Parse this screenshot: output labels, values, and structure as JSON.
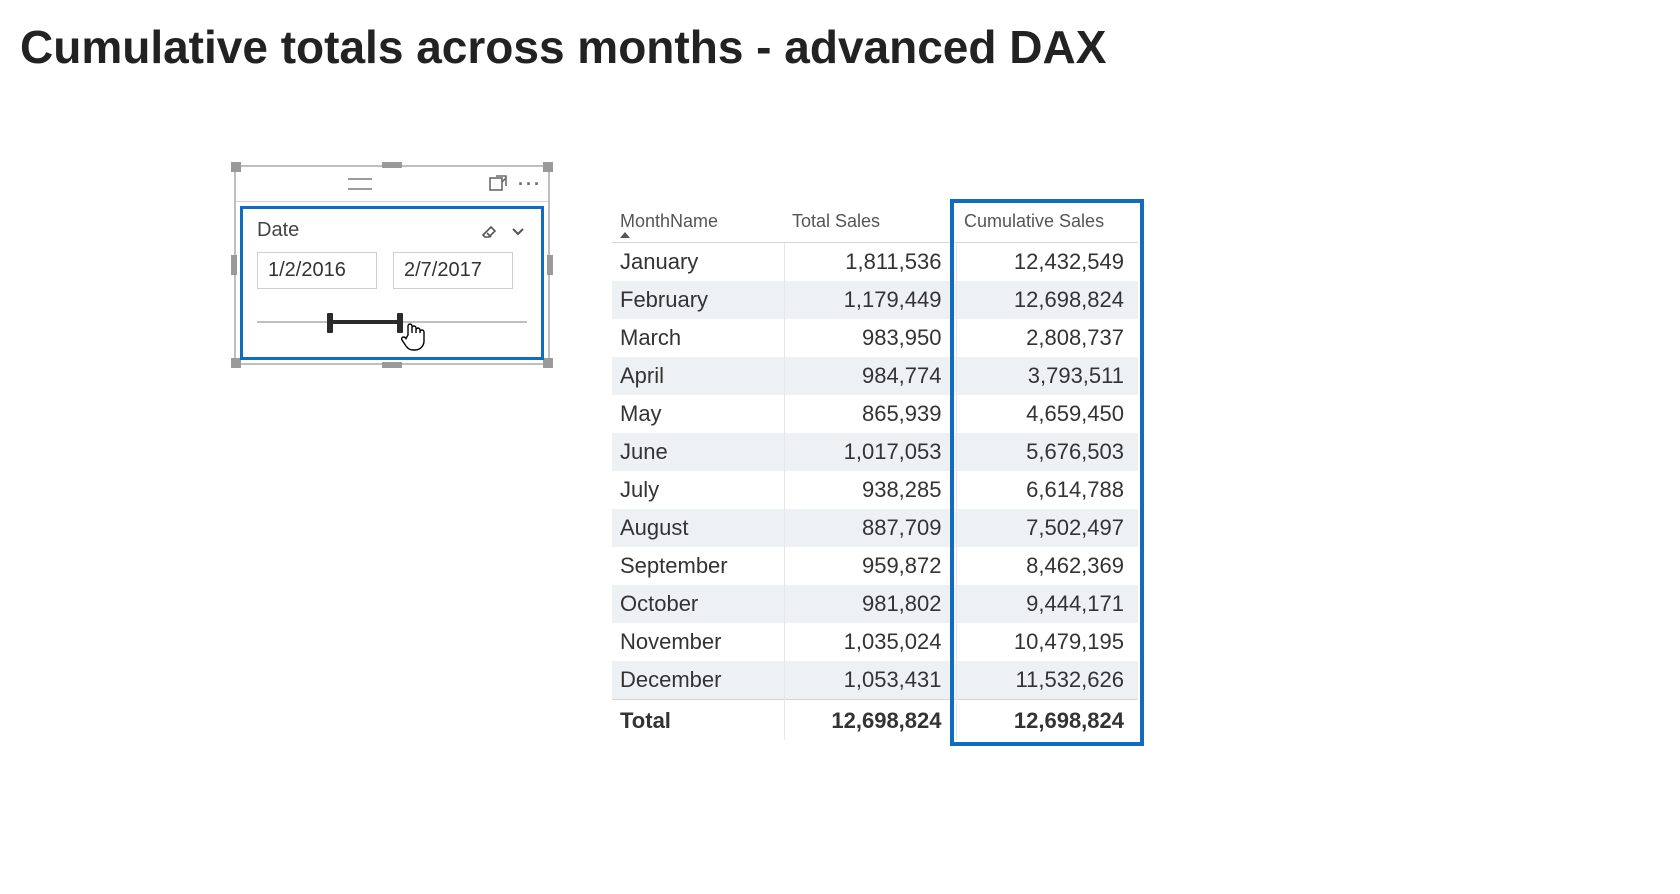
{
  "page": {
    "title": "Cumulative totals across months - advanced DAX"
  },
  "slicer": {
    "field_label": "Date",
    "start_date": "1/2/2016",
    "end_date": "2/7/2017",
    "range": {
      "start_pct": 26,
      "end_pct": 52
    },
    "highlight_color": "#0f6cbf",
    "cursor_at_pct": 54
  },
  "table": {
    "highlight_color": "#0f6cbf",
    "alt_row_bg": "#eef1f4",
    "columns": [
      {
        "key": "month",
        "label": "MonthName",
        "align": "left",
        "sorted_asc": true
      },
      {
        "key": "total",
        "label": "Total Sales",
        "align": "right"
      },
      {
        "key": "cum",
        "label": "Cumulative Sales",
        "align": "right",
        "highlight": true
      }
    ],
    "rows": [
      {
        "month": "January",
        "total": "1,811,536",
        "cum": "12,432,549"
      },
      {
        "month": "February",
        "total": "1,179,449",
        "cum": "12,698,824"
      },
      {
        "month": "March",
        "total": "983,950",
        "cum": "2,808,737"
      },
      {
        "month": "April",
        "total": "984,774",
        "cum": "3,793,511"
      },
      {
        "month": "May",
        "total": "865,939",
        "cum": "4,659,450"
      },
      {
        "month": "June",
        "total": "1,017,053",
        "cum": "5,676,503"
      },
      {
        "month": "July",
        "total": "938,285",
        "cum": "6,614,788"
      },
      {
        "month": "August",
        "total": "887,709",
        "cum": "7,502,497"
      },
      {
        "month": "September",
        "total": "959,872",
        "cum": "8,462,369"
      },
      {
        "month": "October",
        "total": "981,802",
        "cum": "9,444,171"
      },
      {
        "month": "November",
        "total": "1,035,024",
        "cum": "10,479,195"
      },
      {
        "month": "December",
        "total": "1,053,431",
        "cum": "11,532,626"
      }
    ],
    "footer": {
      "label": "Total",
      "total": "12,698,824",
      "cum": "12,698,824"
    }
  }
}
